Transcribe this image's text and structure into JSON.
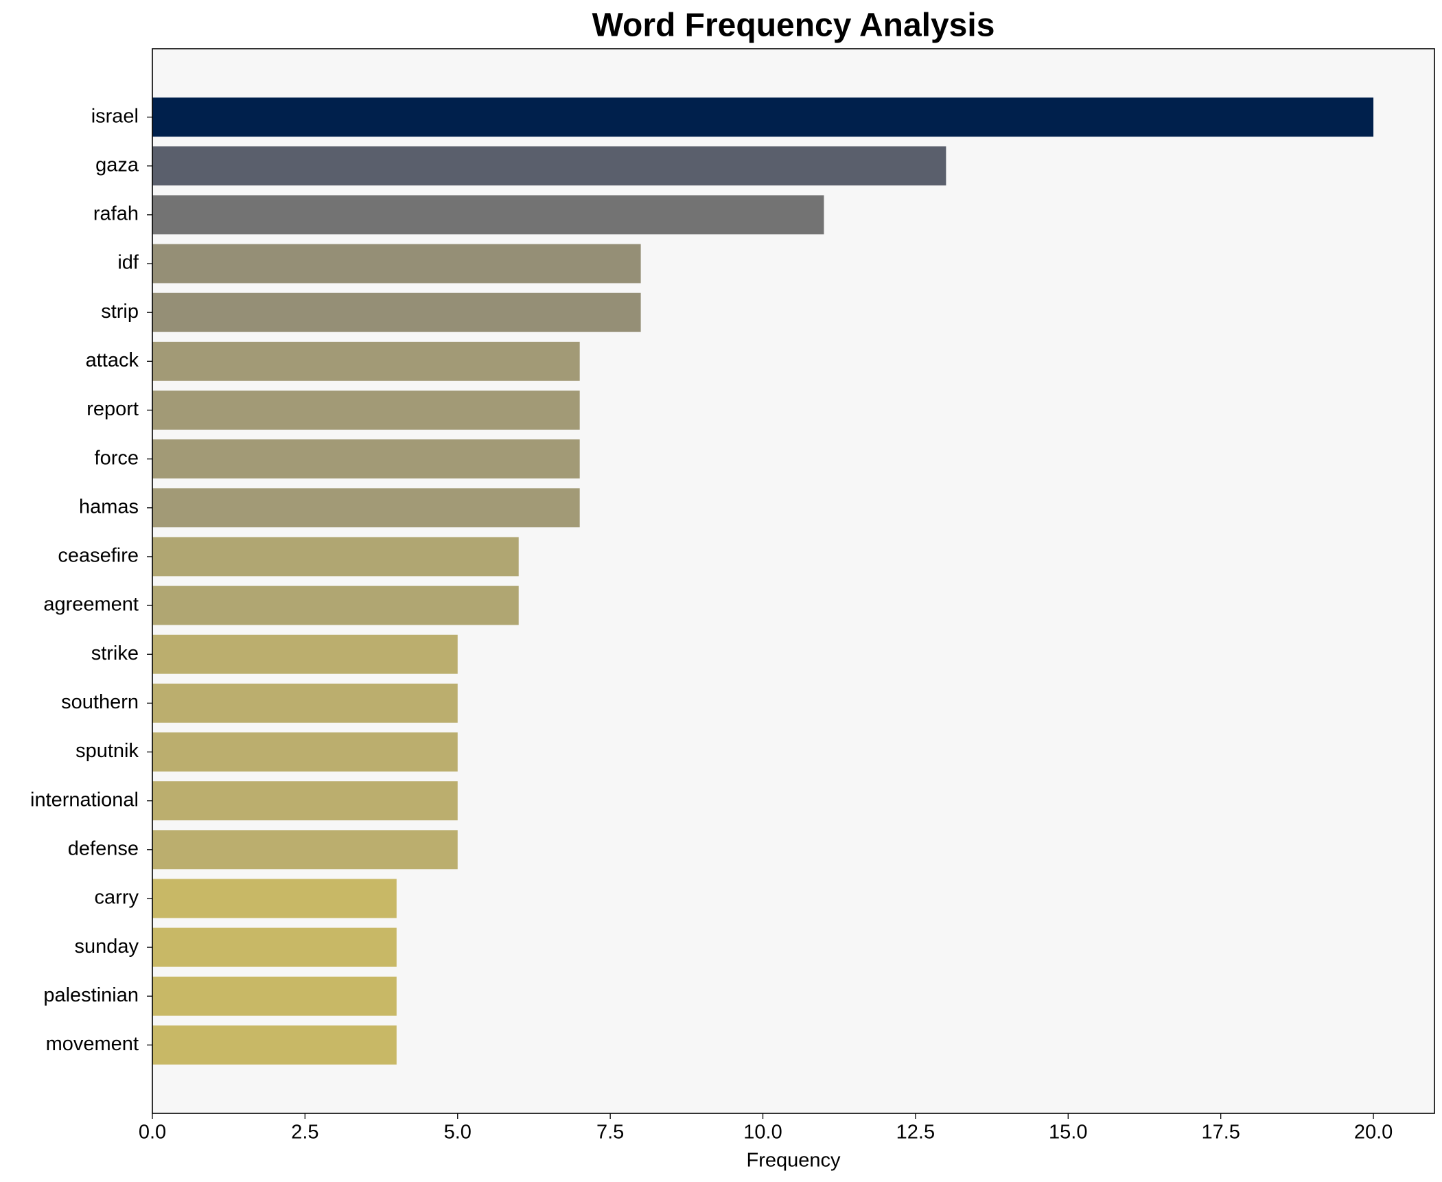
{
  "chart_data": {
    "type": "barh",
    "title": "Word Frequency Analysis",
    "x_label": "Frequency",
    "categories": [
      "israel",
      "gaza",
      "rafah",
      "idf",
      "strip",
      "attack",
      "report",
      "force",
      "hamas",
      "ceasefire",
      "agreement",
      "strike",
      "southern",
      "sputnik",
      "international",
      "defense",
      "carry",
      "sunday",
      "palestinian",
      "movement"
    ],
    "values": [
      20,
      13,
      11,
      8,
      8,
      7,
      7,
      7,
      7,
      6,
      6,
      5,
      5,
      5,
      5,
      5,
      4,
      4,
      4,
      4
    ],
    "colors": [
      "#00204c",
      "#5a5f6c",
      "#737373",
      "#958f76",
      "#958f76",
      "#a29a76",
      "#a29a76",
      "#a29a76",
      "#a29a76",
      "#b0a672",
      "#b0a672",
      "#bbae6e",
      "#bbae6e",
      "#bbae6e",
      "#bbae6e",
      "#bbae6e",
      "#c8b866",
      "#c8b866",
      "#c8b866",
      "#c8b866"
    ],
    "xlim": [
      0,
      21
    ],
    "xticks": [
      {
        "value": 0,
        "label": "0.0"
      },
      2.5,
      {
        "value": 5,
        "label": "5.0"
      },
      7.5,
      {
        "value": 10,
        "label": "10.0"
      },
      12.5,
      {
        "value": 15,
        "label": "15.0"
      },
      17.5,
      {
        "value": 20,
        "label": "20.0"
      }
    ],
    "background": "#f7f7f7"
  }
}
